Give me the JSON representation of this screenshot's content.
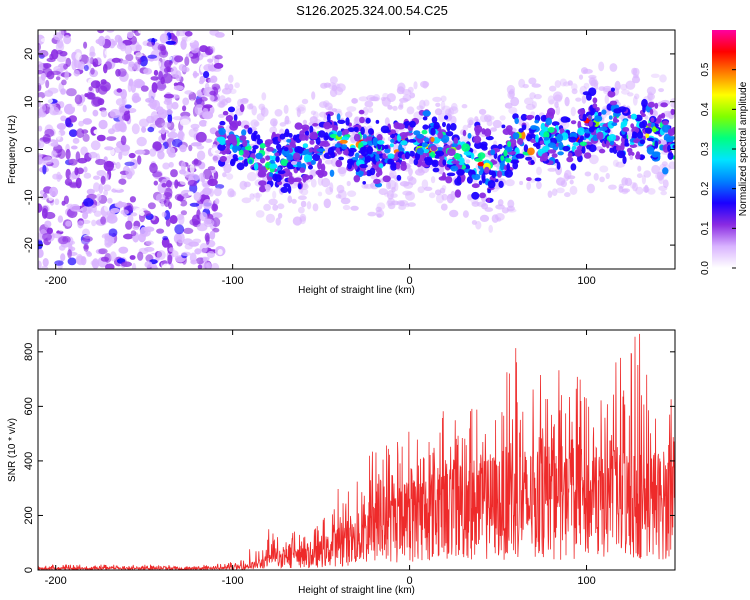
{
  "title": "S126.2025.324.00.54.C25",
  "colors": {
    "snr_line": "#ee2a2a",
    "axis": "#000000",
    "background": "#ffffff"
  },
  "chart_data": [
    {
      "type": "heatmap",
      "name": "spectrogram",
      "xlabel": "Height of straight line (km)",
      "ylabel": "Frequency (Hz)",
      "xlim": [
        -210,
        150
      ],
      "ylim": [
        -25,
        25
      ],
      "xticks": [
        -200,
        -100,
        0,
        100
      ],
      "yticks": [
        -20,
        -10,
        0,
        10,
        20
      ],
      "ytick_labels": [
        "-20",
        "-10",
        "0",
        "10",
        "20"
      ],
      "xtick_labels": [
        "-200",
        "-100",
        "0",
        "100"
      ],
      "colorbar": {
        "label": "Normalized spectral amplitude",
        "range": [
          0.0,
          0.6
        ],
        "ticks": [
          0.0,
          0.1,
          0.2,
          0.3,
          0.4,
          0.5
        ],
        "tick_labels": [
          "0.0",
          "0.1",
          "0.2",
          "0.3",
          "0.4",
          "0.5"
        ],
        "colormap": [
          "#ffffff",
          "#d9b3ff",
          "#8a2be2",
          "#1a00ff",
          "#0080ff",
          "#00e5ff",
          "#00ff80",
          "#80ff00",
          "#ffff00",
          "#ff8000",
          "#ff0000",
          "#ff00a0"
        ]
      },
      "regions": [
        {
          "name": "noise",
          "x_range": [
            -210,
            -107
          ],
          "freq_range": [
            -25,
            25
          ],
          "amplitude": 0.05
        },
        {
          "name": "signal-band",
          "x_range": [
            -107,
            150
          ],
          "center_freq": [
            [
              -105,
              3
            ],
            [
              -90,
              0
            ],
            [
              -75,
              -3
            ],
            [
              -60,
              -2
            ],
            [
              -45,
              2
            ],
            [
              -30,
              0
            ],
            [
              -15,
              -1
            ],
            [
              0,
              1
            ],
            [
              15,
              1
            ],
            [
              30,
              -2
            ],
            [
              45,
              -4
            ],
            [
              60,
              1
            ],
            [
              75,
              2
            ],
            [
              90,
              2
            ],
            [
              105,
              5
            ],
            [
              120,
              4
            ],
            [
              135,
              4
            ],
            [
              150,
              1
            ]
          ],
          "amplitude": 0.25
        }
      ]
    },
    {
      "type": "line",
      "name": "snr",
      "xlabel": "Height of straight line (km)",
      "ylabel": "SNR (10 * v/v)",
      "xlim": [
        -210,
        150
      ],
      "ylim": [
        0,
        880
      ],
      "xticks": [
        -200,
        -100,
        0,
        100
      ],
      "xtick_labels": [
        "-200",
        "-100",
        "0",
        "100"
      ],
      "yticks": [
        0,
        200,
        400,
        600,
        800
      ],
      "ytick_labels": [
        "0",
        "200",
        "400",
        "600",
        "800"
      ],
      "envelope": {
        "x": [
          -210,
          -110,
          -100,
          -90,
          -80,
          -70,
          -60,
          -50,
          -40,
          -30,
          -20,
          -10,
          0,
          10,
          20,
          30,
          40,
          50,
          60,
          70,
          80,
          90,
          100,
          110,
          120,
          130,
          140,
          150
        ],
        "baseline": [
          5,
          5,
          8,
          15,
          30,
          50,
          40,
          60,
          90,
          110,
          140,
          160,
          180,
          200,
          220,
          220,
          230,
          240,
          250,
          240,
          240,
          250,
          250,
          240,
          250,
          240,
          240,
          240
        ],
        "peak": [
          20,
          20,
          30,
          80,
          150,
          170,
          130,
          230,
          330,
          430,
          470,
          470,
          530,
          540,
          590,
          650,
          680,
          700,
          830,
          700,
          740,
          730,
          810,
          790,
          860,
          880,
          710,
          620
        ]
      }
    }
  ]
}
